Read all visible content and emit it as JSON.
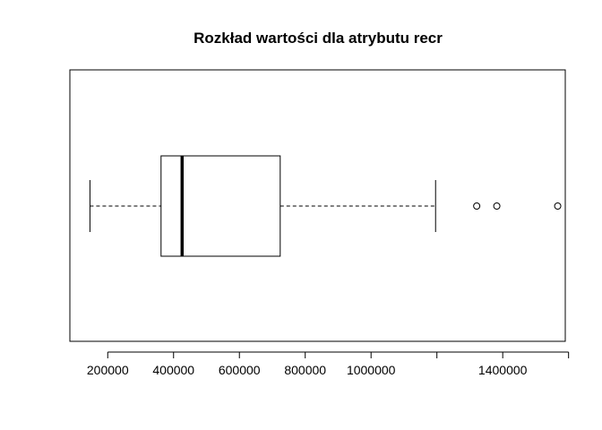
{
  "chart_data": {
    "type": "boxplot",
    "orientation": "horizontal",
    "title": "Rozkład wartości dla atrybutu recr",
    "xlabel": "",
    "ylabel": "",
    "xlim": [
      85000,
      1590000
    ],
    "x_ticks": [
      200000,
      400000,
      600000,
      800000,
      1000000,
      1200000,
      1400000,
      1600000
    ],
    "x_tick_labels": [
      "200000",
      "400000",
      "600000",
      "800000",
      "1000000",
      "",
      "1400000",
      ""
    ],
    "box": {
      "whisker_low": 146000,
      "q1": 362000,
      "median": 426000,
      "q3": 724000,
      "whisker_high": 1196000
    },
    "outliers": [
      1321000,
      1382000,
      1567000
    ],
    "grid": false
  }
}
